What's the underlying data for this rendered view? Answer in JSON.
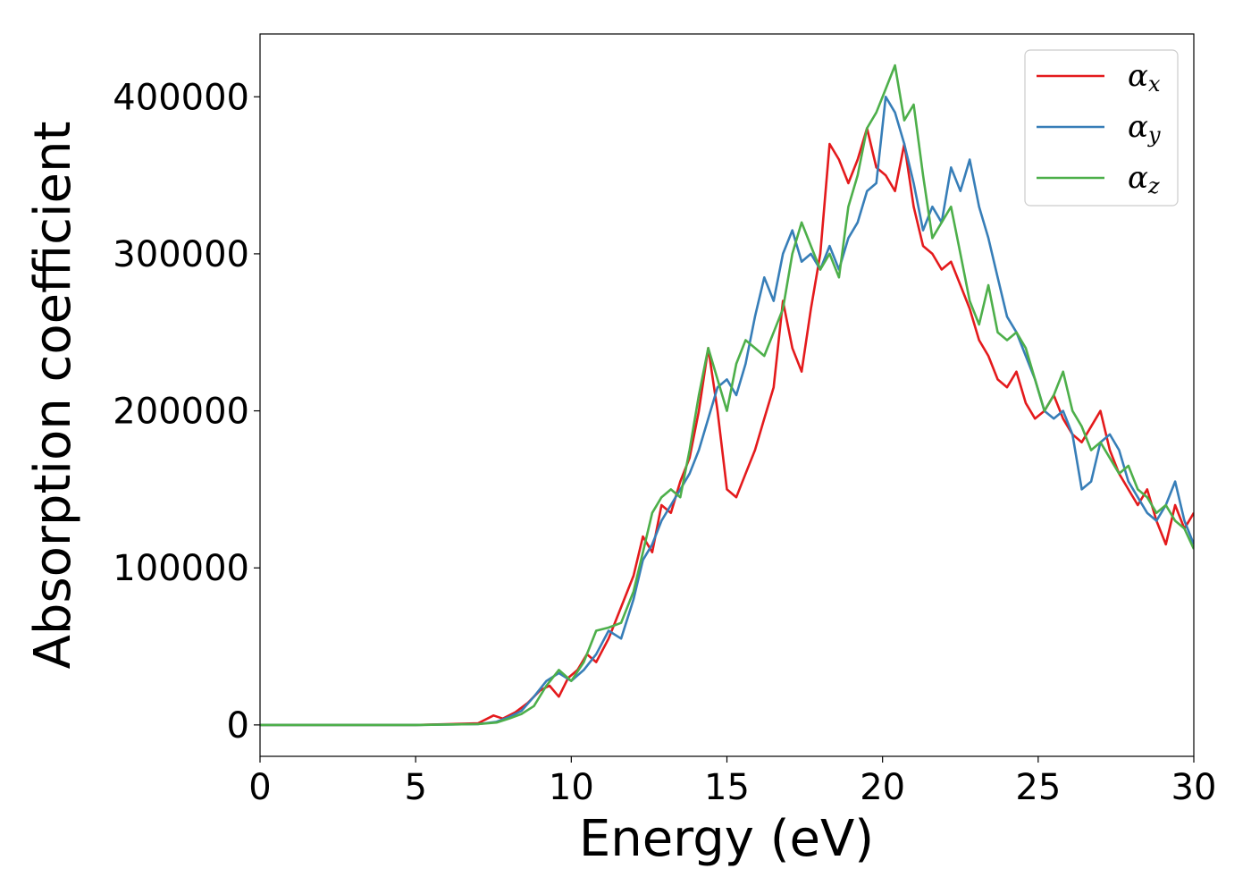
{
  "chart_data": {
    "type": "line",
    "title": "",
    "xlabel": "Energy (eV)",
    "ylabel": "Absorption coefficient",
    "xlim": [
      0,
      30
    ],
    "ylim": [
      -20000,
      440000
    ],
    "xticks": [
      0,
      5,
      10,
      15,
      20,
      25,
      30
    ],
    "yticks": [
      0,
      100000,
      200000,
      300000,
      400000
    ],
    "grid": false,
    "legend_position": "top-right",
    "series": [
      {
        "name": "αx",
        "symbol": "α",
        "subscript": "x",
        "color": "#e41a1c",
        "x": [
          0,
          5,
          7,
          7.5,
          7.8,
          8.2,
          8.6,
          9,
          9.3,
          9.6,
          9.9,
          10.2,
          10.5,
          10.8,
          11.2,
          11.6,
          12,
          12.3,
          12.6,
          12.9,
          13.2,
          13.5,
          13.8,
          14.1,
          14.4,
          14.7,
          15,
          15.3,
          15.6,
          15.9,
          16.2,
          16.5,
          16.8,
          17.1,
          17.4,
          17.7,
          18,
          18.3,
          18.6,
          18.9,
          19.2,
          19.5,
          19.8,
          20.1,
          20.4,
          20.7,
          21,
          21.3,
          21.6,
          21.9,
          22.2,
          22.5,
          22.8,
          23.1,
          23.4,
          23.7,
          24,
          24.3,
          24.6,
          24.9,
          25.2,
          25.5,
          25.8,
          26.1,
          26.4,
          26.7,
          27,
          27.3,
          27.6,
          27.9,
          28.2,
          28.5,
          28.8,
          29.1,
          29.4,
          29.7,
          30
        ],
        "y": [
          0,
          0,
          1000,
          6000,
          4000,
          8000,
          14000,
          22000,
          25000,
          18000,
          30000,
          35000,
          45000,
          40000,
          55000,
          75000,
          95000,
          120000,
          110000,
          140000,
          135000,
          155000,
          170000,
          200000,
          240000,
          200000,
          150000,
          145000,
          160000,
          175000,
          195000,
          215000,
          270000,
          240000,
          225000,
          265000,
          300000,
          370000,
          360000,
          345000,
          360000,
          380000,
          355000,
          350000,
          340000,
          370000,
          330000,
          305000,
          300000,
          290000,
          295000,
          280000,
          265000,
          245000,
          235000,
          220000,
          215000,
          225000,
          205000,
          195000,
          200000,
          210000,
          195000,
          185000,
          180000,
          190000,
          200000,
          175000,
          160000,
          150000,
          140000,
          150000,
          130000,
          115000,
          140000,
          125000,
          135000
        ]
      },
      {
        "name": "αy",
        "symbol": "α",
        "subscript": "y",
        "color": "#377eb8",
        "x": [
          0,
          5,
          7,
          7.6,
          8,
          8.4,
          8.8,
          9.2,
          9.6,
          10,
          10.4,
          10.8,
          11.2,
          11.6,
          12,
          12.3,
          12.6,
          12.9,
          13.2,
          13.5,
          13.8,
          14.1,
          14.4,
          14.7,
          15,
          15.3,
          15.6,
          15.9,
          16.2,
          16.5,
          16.8,
          17.1,
          17.4,
          17.7,
          18,
          18.3,
          18.6,
          18.9,
          19.2,
          19.5,
          19.8,
          20.1,
          20.4,
          20.7,
          21,
          21.3,
          21.6,
          21.9,
          22.2,
          22.5,
          22.8,
          23.1,
          23.4,
          23.7,
          24,
          24.3,
          24.6,
          24.9,
          25.2,
          25.5,
          25.8,
          26.1,
          26.4,
          26.7,
          27,
          27.3,
          27.6,
          27.9,
          28.2,
          28.5,
          28.8,
          29.1,
          29.4,
          29.7,
          30
        ],
        "y": [
          0,
          0,
          500,
          2000,
          5000,
          9000,
          18000,
          28000,
          33000,
          28000,
          35000,
          45000,
          60000,
          55000,
          80000,
          105000,
          115000,
          130000,
          140000,
          150000,
          160000,
          175000,
          195000,
          215000,
          220000,
          210000,
          230000,
          260000,
          285000,
          270000,
          300000,
          315000,
          295000,
          300000,
          290000,
          305000,
          290000,
          310000,
          320000,
          340000,
          345000,
          400000,
          390000,
          370000,
          345000,
          315000,
          330000,
          320000,
          355000,
          340000,
          360000,
          330000,
          310000,
          285000,
          260000,
          250000,
          235000,
          220000,
          200000,
          195000,
          200000,
          185000,
          150000,
          155000,
          180000,
          185000,
          175000,
          155000,
          145000,
          135000,
          130000,
          140000,
          155000,
          130000,
          115000
        ]
      },
      {
        "name": "αz",
        "symbol": "α",
        "subscript": "z",
        "color": "#4daf4a",
        "x": [
          0,
          5,
          7,
          7.6,
          8,
          8.4,
          8.8,
          9.2,
          9.6,
          10,
          10.4,
          10.8,
          11.2,
          11.6,
          12,
          12.3,
          12.6,
          12.9,
          13.2,
          13.5,
          13.8,
          14.1,
          14.4,
          14.7,
          15,
          15.3,
          15.6,
          15.9,
          16.2,
          16.5,
          16.8,
          17.1,
          17.4,
          17.7,
          18,
          18.3,
          18.6,
          18.9,
          19.2,
          19.5,
          19.8,
          20.1,
          20.4,
          20.7,
          21,
          21.3,
          21.6,
          21.9,
          22.2,
          22.5,
          22.8,
          23.1,
          23.4,
          23.7,
          24,
          24.3,
          24.6,
          24.9,
          25.2,
          25.5,
          25.8,
          26.1,
          26.4,
          26.7,
          27,
          27.3,
          27.6,
          27.9,
          28.2,
          28.5,
          28.8,
          29.1,
          29.4,
          29.7,
          30
        ],
        "y": [
          0,
          0,
          500,
          1500,
          4000,
          7000,
          12000,
          25000,
          35000,
          28000,
          40000,
          60000,
          62000,
          65000,
          85000,
          110000,
          135000,
          145000,
          150000,
          145000,
          175000,
          210000,
          240000,
          220000,
          200000,
          230000,
          245000,
          240000,
          235000,
          250000,
          265000,
          300000,
          320000,
          305000,
          290000,
          300000,
          285000,
          330000,
          350000,
          380000,
          390000,
          405000,
          420000,
          385000,
          395000,
          350000,
          310000,
          320000,
          330000,
          300000,
          270000,
          255000,
          280000,
          250000,
          245000,
          250000,
          240000,
          220000,
          200000,
          210000,
          225000,
          200000,
          190000,
          175000,
          180000,
          170000,
          160000,
          165000,
          150000,
          145000,
          135000,
          140000,
          130000,
          125000,
          112000
        ]
      }
    ]
  }
}
